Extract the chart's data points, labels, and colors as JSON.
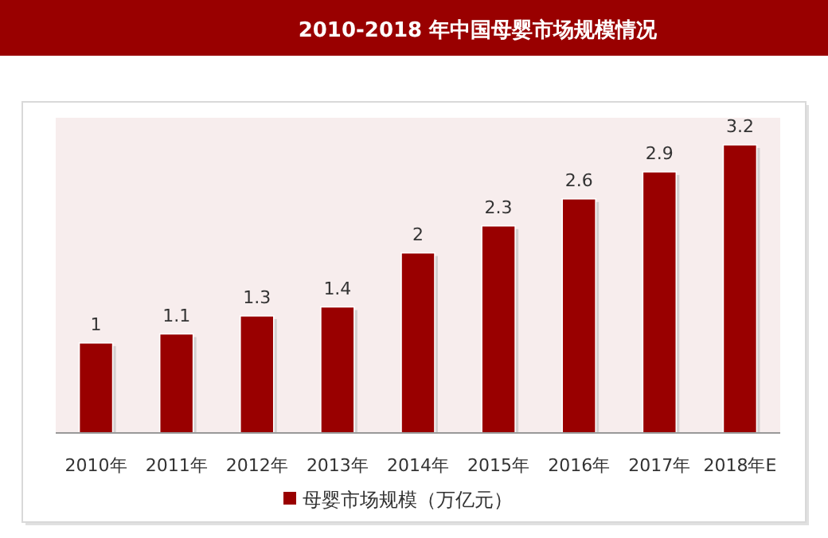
{
  "chart_data": {
    "type": "bar",
    "title": "2010-2018 年中国母婴市场规模情况",
    "categories": [
      "2010年",
      "2011年",
      "2012年",
      "2013年",
      "2014年",
      "2015年",
      "2016年",
      "2017年",
      "2018年E"
    ],
    "series": [
      {
        "name": "母婴市场规模（万亿元）",
        "color": "#990000",
        "values": [
          1,
          1.1,
          1.3,
          1.4,
          2,
          2.3,
          2.6,
          2.9,
          3.2
        ]
      }
    ],
    "ylim": [
      0,
      3.5
    ],
    "data_labels": true,
    "legend": "bottom",
    "tick_labels": "x"
  }
}
